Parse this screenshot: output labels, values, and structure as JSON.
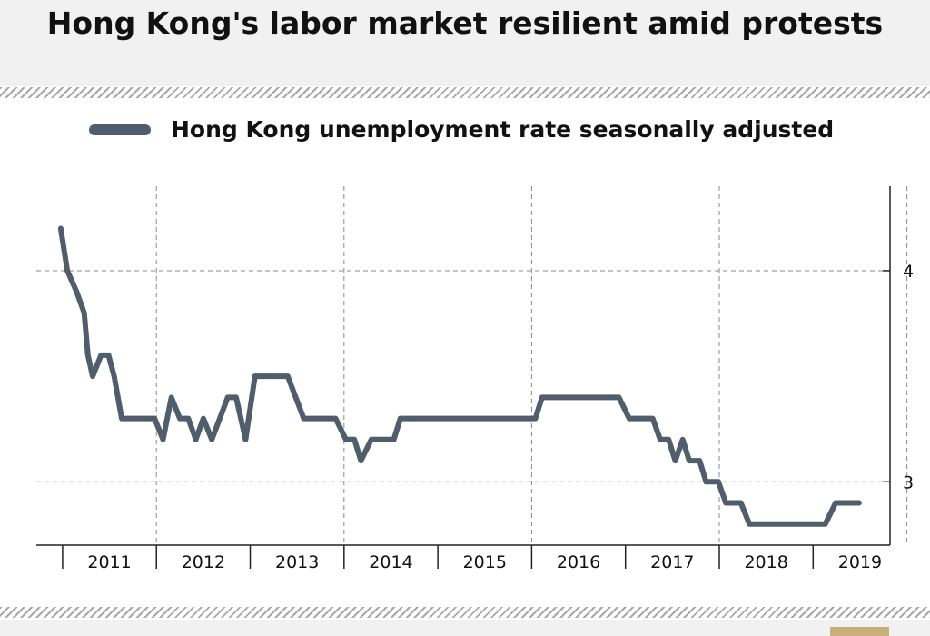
{
  "title": "Hong Kong's labor market resilient amid protests",
  "colors": {
    "series": "#4f5e6a",
    "grid": "#8a8a8a",
    "axis": "#222222",
    "header_bg": "#f1f1f1"
  },
  "chart_data": {
    "type": "line",
    "title": "Hong Kong's labor market resilient amid protests",
    "xlabel": "",
    "ylabel": "",
    "legend": "top-left",
    "grid": true,
    "y_axis_side": "right",
    "ylim": [
      2.7,
      4.4
    ],
    "y_ticks": [
      3,
      4
    ],
    "xlim": [
      2010.72,
      2019.82
    ],
    "x_tick_labels": [
      "2011",
      "2012",
      "2013",
      "2014",
      "2015",
      "2016",
      "2017",
      "2018",
      "2019"
    ],
    "series": [
      {
        "name": "Hong Kong unemployment rate seasonally adjusted",
        "x": [
          2010.98,
          2011.05,
          2011.15,
          2011.23,
          2011.27,
          2011.32,
          2011.41,
          2011.49,
          2011.55,
          2011.63,
          2011.98,
          2012.07,
          2012.16,
          2012.25,
          2012.34,
          2012.42,
          2012.5,
          2012.59,
          2012.76,
          2012.85,
          2012.95,
          2013.05,
          2013.17,
          2013.4,
          2013.57,
          2013.91,
          2014.02,
          2014.11,
          2014.18,
          2014.29,
          2014.53,
          2014.6,
          2016.04,
          2016.11,
          2016.93,
          2017.04,
          2017.29,
          2017.37,
          2017.46,
          2017.53,
          2017.61,
          2017.68,
          2017.79,
          2017.86,
          2017.99,
          2018.07,
          2018.23,
          2018.32,
          2019.13,
          2019.24,
          2019.33,
          2019.49
        ]
      },
      {
        "y": [
          4.2,
          4.0,
          3.9,
          3.8,
          3.6,
          3.5,
          3.6,
          3.6,
          3.5,
          3.3,
          3.3,
          3.2,
          3.4,
          3.3,
          3.3,
          3.2,
          3.3,
          3.2,
          3.4,
          3.4,
          3.2,
          3.5,
          3.5,
          3.5,
          3.3,
          3.3,
          3.2,
          3.2,
          3.1,
          3.2,
          3.2,
          3.3,
          3.3,
          3.4,
          3.4,
          3.3,
          3.3,
          3.2,
          3.2,
          3.1,
          3.2,
          3.1,
          3.1,
          3.0,
          3.0,
          2.9,
          2.9,
          2.8,
          2.8,
          2.9,
          2.9,
          2.9
        ]
      }
    ]
  }
}
